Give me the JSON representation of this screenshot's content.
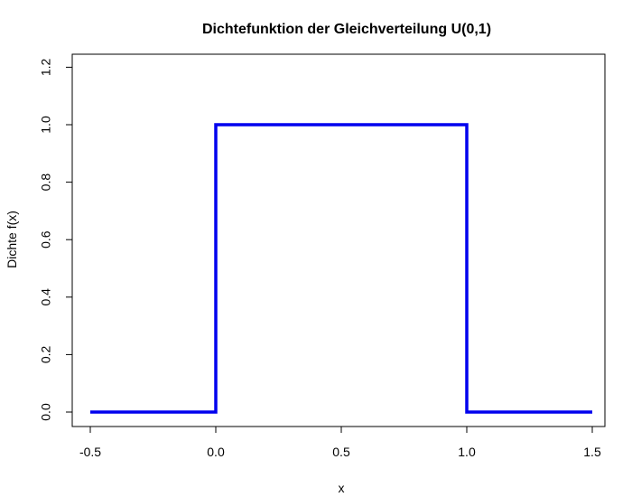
{
  "chart_data": {
    "type": "line",
    "title": "Dichtefunktion der Gleichverteilung U(0,1)",
    "xlabel": "x",
    "ylabel": "Dichte f(x)",
    "xlim": [
      -0.5,
      1.5
    ],
    "ylim": [
      0.0,
      1.25
    ],
    "x_ticks": [
      -0.5,
      0.0,
      0.5,
      1.0,
      1.5
    ],
    "x_tick_labels": [
      "-0.5",
      "0.0",
      "0.5",
      "1.0",
      "1.5"
    ],
    "y_ticks": [
      0.0,
      0.2,
      0.4,
      0.6,
      0.8,
      1.0,
      1.2
    ],
    "y_tick_labels": [
      "0.0",
      "0.2",
      "0.4",
      "0.6",
      "0.8",
      "1.0",
      "1.2"
    ],
    "grid": false,
    "series": [
      {
        "color": "#0000ee",
        "points": [
          {
            "x": -0.5,
            "y": 0.0
          },
          {
            "x": 0.0,
            "y": 0.0
          },
          {
            "x": 0.0,
            "y": 1.0
          },
          {
            "x": 1.0,
            "y": 1.0
          },
          {
            "x": 1.0,
            "y": 0.5
          },
          {
            "x": 1.0,
            "y": 0.0
          },
          {
            "x": 1.5,
            "y": 0.0
          }
        ]
      }
    ]
  }
}
